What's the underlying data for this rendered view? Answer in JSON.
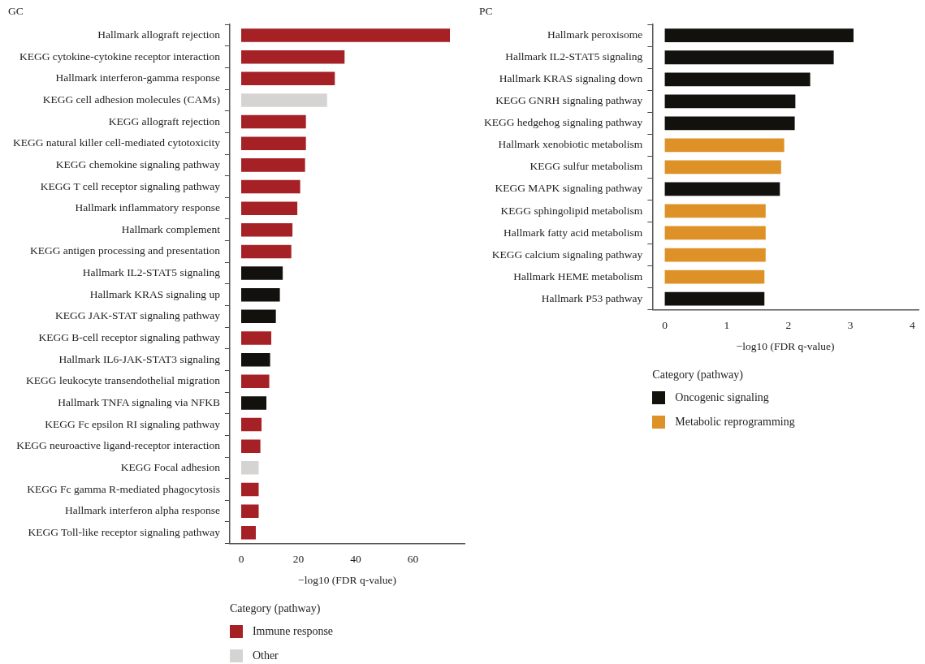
{
  "chart_data": [
    {
      "type": "bar",
      "title": "GC",
      "orientation": "horizontal",
      "xlabel": "−log10 (FDR q-value)",
      "legend_title": "Category (pathway)",
      "legend": "bottom",
      "grid": false,
      "categories": [
        "Hallmark allograft rejection",
        "KEGG cytokine-cytokine receptor interaction",
        "Hallmark interferon-gamma response",
        "KEGG cell adhesion molecules (CAMs)",
        "KEGG allograft rejection",
        "KEGG natural killer cell-mediated cytotoxicity",
        "KEGG chemokine signaling pathway",
        "KEGG T cell receptor signaling pathway",
        "Hallmark inflammatory response",
        "Hallmark complement",
        "KEGG antigen processing and presentation",
        "Hallmark IL2-STAT5 signaling",
        "Hallmark KRAS signaling up",
        "KEGG JAK-STAT signaling pathway",
        "KEGG B-cell receptor signaling pathway",
        "Hallmark IL6-JAK-STAT3 signaling",
        "KEGG leukocyte transendothelial migration",
        "Hallmark TNFA signaling via NFKB",
        "KEGG Fc epsilon RI signaling pathway",
        "KEGG neuroactive ligand-receptor interaction",
        "KEGG Focal adhesion",
        "KEGG Fc gamma R-mediated phagocytosis",
        "Hallmark interferon alpha response",
        "KEGG Toll-like receptor signaling pathway"
      ],
      "series": [
        {
          "name": "Immune response",
          "color": "#a52126",
          "values": [
            72.9,
            36.1,
            32.7,
            null,
            22.6,
            22.6,
            22.3,
            20.6,
            19.6,
            17.9,
            17.5,
            null,
            null,
            null,
            10.5,
            null,
            9.8,
            null,
            7.1,
            6.7,
            null,
            6.1,
            6.1,
            5.1
          ]
        },
        {
          "name": "Other",
          "color": "#d5d4d2",
          "values": [
            null,
            null,
            null,
            30.0,
            null,
            null,
            null,
            null,
            null,
            null,
            null,
            null,
            null,
            null,
            null,
            null,
            null,
            null,
            null,
            null,
            6.1,
            null,
            null,
            null
          ]
        },
        {
          "color": "#12110d",
          "values": [
            null,
            null,
            null,
            null,
            null,
            null,
            null,
            null,
            null,
            null,
            null,
            14.5,
            13.5,
            12.1,
            null,
            10.1,
            null,
            8.8,
            null,
            null,
            null,
            null,
            null,
            null
          ]
        }
      ],
      "xlim": [
        -4,
        78
      ],
      "xticks": [
        0,
        20,
        40,
        60
      ]
    },
    {
      "type": "bar",
      "title": "PC",
      "orientation": "horizontal",
      "xlabel": "−log10 (FDR q-value)",
      "legend_title": "Category (pathway)",
      "legend": "bottom",
      "grid": false,
      "categories": [
        "Hallmark peroxisome",
        "Hallmark IL2-STAT5 signaling",
        "Hallmark KRAS signaling down",
        "KEGG GNRH signaling pathway",
        "KEGG hedgehog signaling pathway",
        "Hallmark xenobiotic metabolism",
        "KEGG sulfur metabolism",
        "KEGG MAPK signaling pathway",
        "KEGG sphingolipid metabolism",
        "Hallmark fatty acid metabolism",
        "KEGG calcium signaling pathway",
        "Hallmark HEME metabolism",
        "Hallmark P53 pathway"
      ],
      "series": [
        {
          "name": "Oncogenic signaling",
          "color": "#12110d",
          "values": [
            3.05,
            2.73,
            2.35,
            2.11,
            2.1,
            null,
            null,
            1.86,
            null,
            null,
            null,
            null,
            1.61
          ]
        },
        {
          "name": "Metabolic reprogramming",
          "color": "#de9127",
          "values": [
            null,
            null,
            null,
            null,
            null,
            1.93,
            1.88,
            null,
            1.63,
            1.63,
            1.63,
            1.61,
            null
          ]
        }
      ],
      "xlim": [
        -0.2,
        4.1
      ],
      "xticks": [
        0,
        1,
        2,
        3,
        4
      ]
    }
  ]
}
